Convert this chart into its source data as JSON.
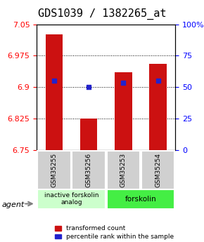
{
  "title": "GDS1039 / 1382265_at",
  "samples": [
    "GSM35255",
    "GSM35256",
    "GSM35253",
    "GSM35254"
  ],
  "bar_values": [
    7.025,
    6.825,
    6.935,
    6.955
  ],
  "percentile_values": [
    6.915,
    6.9,
    6.91,
    6.915
  ],
  "ylim": [
    6.75,
    7.05
  ],
  "yticks_left": [
    6.75,
    6.825,
    6.9,
    6.975,
    7.05
  ],
  "yticks_right_vals": [
    6.75,
    6.825,
    6.9,
    6.975,
    7.05
  ],
  "yticks_right_labels": [
    "0",
    "25",
    "50",
    "75",
    "100%"
  ],
  "bar_color": "#cc1111",
  "percentile_color": "#2222cc",
  "bar_bottom": 6.75,
  "grid_vals": [
    6.825,
    6.9,
    6.975
  ],
  "group1_label": "inactive forskolin\nanalog",
  "group2_label": "forskolin",
  "group1_indices": [
    0,
    1
  ],
  "group2_indices": [
    2,
    3
  ],
  "group1_color": "#ccffcc",
  "group2_color": "#44ee44",
  "agent_label": "agent",
  "legend_bar_label": "transformed count",
  "legend_pct_label": "percentile rank within the sample",
  "title_fontsize": 11,
  "tick_fontsize": 8,
  "label_fontsize": 8
}
